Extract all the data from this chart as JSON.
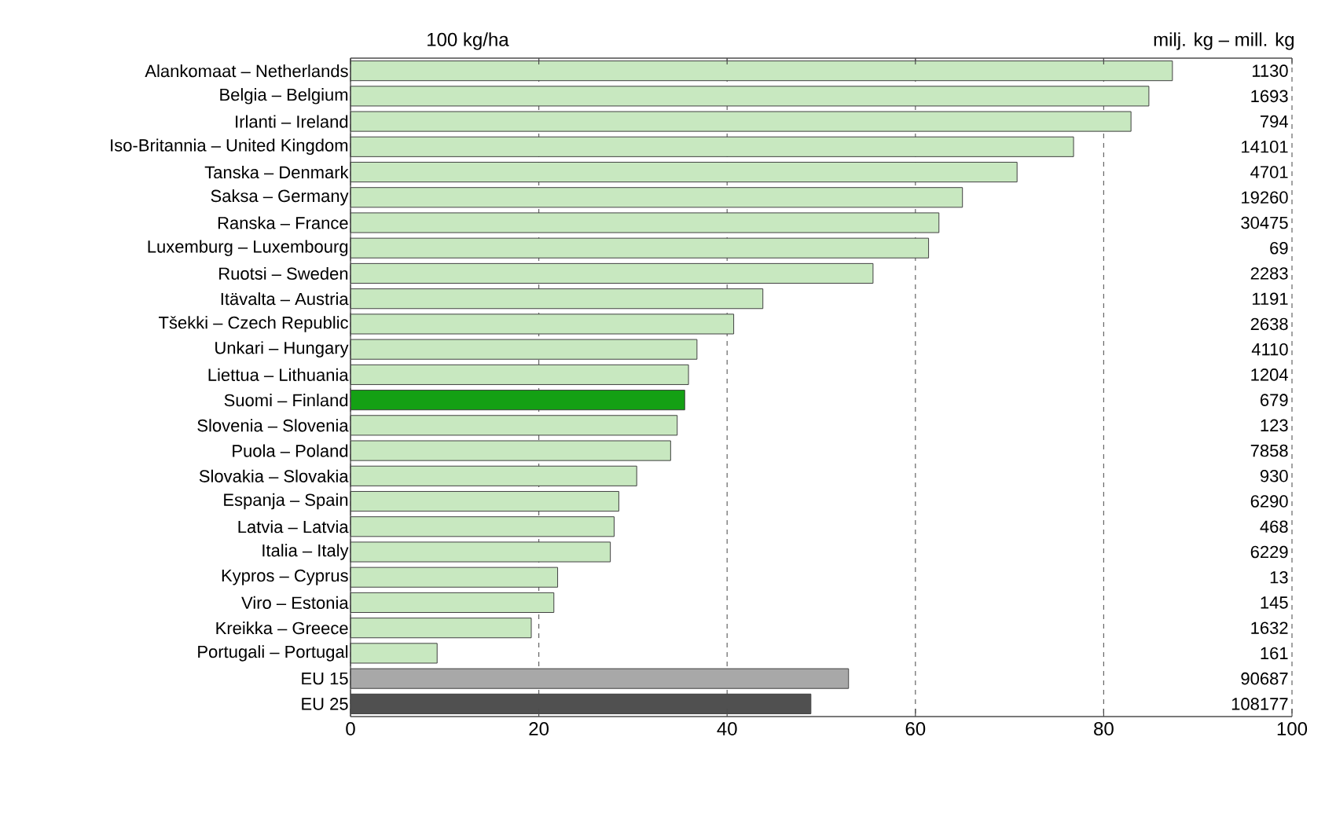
{
  "chart_data": {
    "type": "bar",
    "orientation": "horizontal",
    "xlabel": "100 kg/ha",
    "categories": [
      "Alankomaat – Netherlands",
      "Belgia – Belgium",
      "Irlanti – Ireland",
      "Iso-Britannia – United Kingdom",
      "Tanska – Denmark",
      "Saksa – Germany",
      "Ranska – France",
      "Luxemburg – Luxembourg",
      "Ruotsi – Sweden",
      "Itävalta – Austria",
      "Tšekki – Czech Republic",
      "Unkari – Hungary",
      "Liettua – Lithuania",
      "Suomi – Finland",
      "Slovenia – Slovenia",
      "Puola – Poland",
      "Slovakia – Slovakia",
      "Espanja – Spain",
      "Latvia – Latvia",
      "Italia – Italy",
      "Kypros – Cyprus",
      "Viro – Estonia",
      "Kreikka – Greece",
      "Portugali – Portugal",
      "EU 15",
      "EU 25"
    ],
    "values": [
      87.3,
      84.8,
      82.9,
      76.8,
      70.8,
      65.0,
      62.5,
      61.4,
      55.5,
      43.8,
      40.7,
      36.8,
      35.9,
      35.5,
      34.7,
      34.0,
      30.4,
      28.5,
      28.0,
      27.6,
      22.0,
      21.6,
      19.2,
      9.2,
      52.9,
      48.9
    ],
    "colors": [
      "#c8e8c0",
      "#c8e8c0",
      "#c8e8c0",
      "#c8e8c0",
      "#c8e8c0",
      "#c8e8c0",
      "#c8e8c0",
      "#c8e8c0",
      "#c8e8c0",
      "#c8e8c0",
      "#c8e8c0",
      "#c8e8c0",
      "#c8e8c0",
      "#14a014",
      "#c8e8c0",
      "#c8e8c0",
      "#c8e8c0",
      "#c8e8c0",
      "#c8e8c0",
      "#c8e8c0",
      "#c8e8c0",
      "#c8e8c0",
      "#c8e8c0",
      "#c8e8c0",
      "#a8a8a8",
      "#505050"
    ],
    "xlim": [
      0,
      100
    ],
    "xticks": [
      0,
      20,
      40,
      60,
      80,
      100
    ],
    "grid": "x",
    "annotations": [
      "milj. kg – mill. kg",
      "1130",
      "1693",
      "794",
      "14101",
      "4701",
      "19260",
      "30475",
      "69",
      "2283",
      "1191",
      "2638",
      "4110",
      "1204",
      "679",
      "123",
      "7858",
      "930",
      "6290",
      "468",
      "6229",
      "13",
      "145",
      "1632",
      "161",
      "90687",
      "108177"
    ]
  }
}
